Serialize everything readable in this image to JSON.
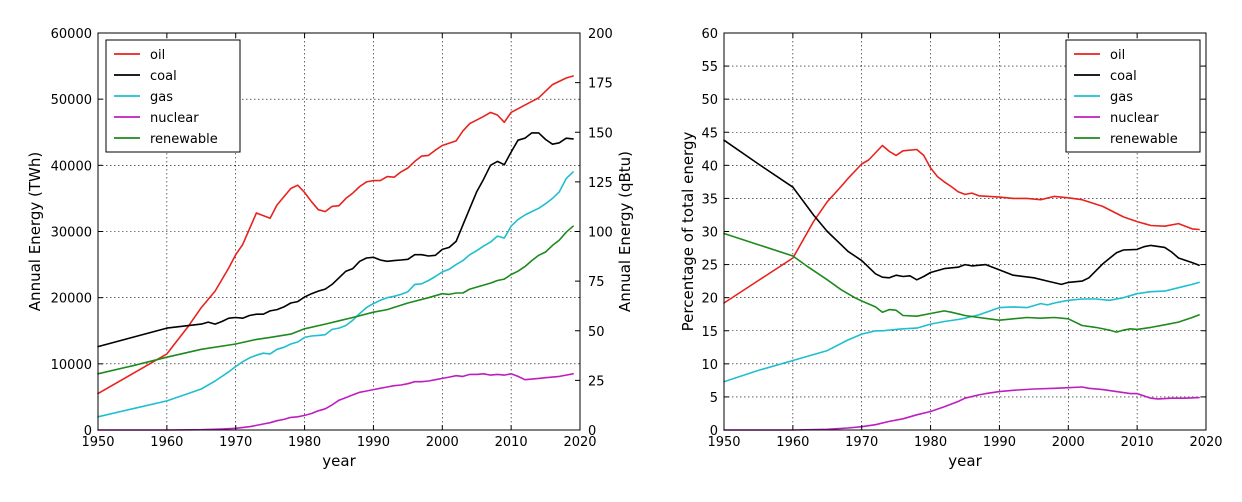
{
  "chart_data": [
    {
      "type": "line",
      "xlabel": "year",
      "ylabel": "Annual Energy (TWh)",
      "y2label": "Annual Energy (qBtu)",
      "xlim": [
        1950,
        2020
      ],
      "ylim": [
        0,
        60000
      ],
      "y2lim": [
        0,
        200
      ],
      "xticks": [
        1950,
        1960,
        1970,
        1980,
        1990,
        2000,
        2010,
        2020
      ],
      "yticks": [
        0,
        10000,
        20000,
        30000,
        40000,
        50000,
        60000
      ],
      "y2ticks": [
        0,
        25,
        50,
        75,
        100,
        125,
        150,
        175,
        200
      ],
      "grid": true,
      "legend_position": "top-left",
      "series": [
        {
          "name": "oil",
          "color": "#e8231e",
          "x": [
            1950,
            1955,
            1960,
            1963,
            1965,
            1967,
            1969,
            1970,
            1971,
            1973,
            1975,
            1976,
            1978,
            1979,
            1980,
            1981,
            1982,
            1983,
            1984,
            1985,
            1986,
            1987,
            1988,
            1989,
            1990,
            1991,
            1992,
            1993,
            1994,
            1995,
            1996,
            1997,
            1998,
            1999,
            2000,
            2002,
            2003,
            2004,
            2006,
            2007,
            2008,
            2009,
            2010,
            2012,
            2014,
            2016,
            2018,
            2019
          ],
          "y": [
            5500,
            8500,
            11500,
            15500,
            18500,
            21000,
            24500,
            26500,
            28000,
            32800,
            32000,
            34000,
            36500,
            37000,
            35900,
            34500,
            33300,
            33000,
            33800,
            33900,
            35000,
            35800,
            36800,
            37500,
            37700,
            37700,
            38300,
            38200,
            39000,
            39600,
            40600,
            41400,
            41500,
            42300,
            43000,
            43700,
            45200,
            46300,
            47400,
            48000,
            47600,
            46500,
            48000,
            49100,
            50200,
            52200,
            53200,
            53500
          ]
        },
        {
          "name": "coal",
          "color": "#000000",
          "x": [
            1950,
            1955,
            1960,
            1965,
            1966,
            1967,
            1968,
            1969,
            1970,
            1971,
            1972,
            1973,
            1974,
            1975,
            1976,
            1977,
            1978,
            1979,
            1980,
            1981,
            1982,
            1983,
            1984,
            1985,
            1986,
            1987,
            1988,
            1989,
            1990,
            1991,
            1992,
            1993,
            1994,
            1995,
            1996,
            1997,
            1998,
            1999,
            2000,
            2001,
            2002,
            2003,
            2004,
            2005,
            2006,
            2007,
            2008,
            2009,
            2010,
            2011,
            2012,
            2013,
            2014,
            2015,
            2016,
            2017,
            2018,
            2019
          ],
          "y": [
            12600,
            14000,
            15400,
            16000,
            16300,
            16000,
            16400,
            16900,
            17000,
            16900,
            17300,
            17500,
            17500,
            18000,
            18200,
            18600,
            19200,
            19400,
            20100,
            20600,
            21000,
            21300,
            22000,
            23000,
            24000,
            24400,
            25500,
            26000,
            26100,
            25700,
            25500,
            25600,
            25700,
            25800,
            26500,
            26500,
            26300,
            26400,
            27300,
            27600,
            28500,
            31000,
            33500,
            36000,
            37900,
            40000,
            40600,
            40100,
            42000,
            43800,
            44100,
            44900,
            44900,
            43900,
            43200,
            43400,
            44100,
            44000
          ]
        },
        {
          "name": "gas",
          "color": "#1ebfcf",
          "x": [
            1950,
            1955,
            1960,
            1965,
            1967,
            1969,
            1970,
            1971,
            1972,
            1973,
            1974,
            1975,
            1976,
            1977,
            1978,
            1979,
            1980,
            1981,
            1982,
            1983,
            1984,
            1985,
            1986,
            1987,
            1988,
            1989,
            1990,
            1991,
            1992,
            1993,
            1994,
            1995,
            1996,
            1997,
            1998,
            1999,
            2000,
            2001,
            2002,
            2003,
            2004,
            2005,
            2006,
            2007,
            2008,
            2009,
            2010,
            2011,
            2012,
            2013,
            2014,
            2015,
            2016,
            2017,
            2018,
            2019
          ],
          "y": [
            2000,
            3200,
            4400,
            6200,
            7400,
            8800,
            9600,
            10300,
            10900,
            11300,
            11600,
            11500,
            12200,
            12500,
            13000,
            13300,
            14000,
            14200,
            14300,
            14400,
            15200,
            15400,
            15800,
            16600,
            17600,
            18500,
            19100,
            19600,
            20000,
            20200,
            20500,
            20900,
            22000,
            22100,
            22600,
            23200,
            23900,
            24300,
            25000,
            25600,
            26500,
            27100,
            27800,
            28400,
            29300,
            29000,
            30800,
            31800,
            32500,
            33000,
            33500,
            34200,
            35000,
            36000,
            38000,
            39000
          ]
        },
        {
          "name": "nuclear",
          "color": "#bf1ebf",
          "x": [
            1950,
            1955,
            1960,
            1965,
            1968,
            1970,
            1972,
            1973,
            1974,
            1975,
            1976,
            1977,
            1978,
            1979,
            1980,
            1981,
            1982,
            1983,
            1984,
            1985,
            1986,
            1987,
            1988,
            1989,
            1990,
            1991,
            1992,
            1993,
            1994,
            1995,
            1996,
            1997,
            1998,
            1999,
            2000,
            2001,
            2002,
            2003,
            2004,
            2005,
            2006,
            2007,
            2008,
            2009,
            2010,
            2011,
            2012,
            2013,
            2014,
            2015,
            2016,
            2017,
            2018,
            2019
          ],
          "y": [
            0,
            0,
            0,
            50,
            150,
            250,
            500,
            700,
            900,
            1100,
            1400,
            1600,
            1900,
            2000,
            2200,
            2500,
            2900,
            3200,
            3800,
            4500,
            4900,
            5300,
            5700,
            5900,
            6100,
            6300,
            6500,
            6700,
            6800,
            7000,
            7300,
            7300,
            7400,
            7600,
            7800,
            8000,
            8200,
            8100,
            8400,
            8400,
            8500,
            8300,
            8400,
            8300,
            8500,
            8100,
            7600,
            7700,
            7800,
            7900,
            8000,
            8100,
            8300,
            8500
          ]
        },
        {
          "name": "renewable",
          "color": "#1e8a1e",
          "x": [
            1950,
            1955,
            1960,
            1965,
            1970,
            1973,
            1975,
            1978,
            1980,
            1983,
            1985,
            1987,
            1990,
            1992,
            1995,
            1998,
            2000,
            2001,
            2002,
            2003,
            2004,
            2005,
            2006,
            2007,
            2008,
            2009,
            2010,
            2011,
            2012,
            2013,
            2014,
            2015,
            2016,
            2017,
            2018,
            2019
          ],
          "y": [
            8500,
            9700,
            11000,
            12200,
            13000,
            13700,
            14000,
            14500,
            15300,
            16000,
            16500,
            17000,
            17800,
            18200,
            19200,
            20000,
            20600,
            20500,
            20700,
            20700,
            21300,
            21600,
            21900,
            22200,
            22600,
            22800,
            23500,
            24000,
            24700,
            25600,
            26400,
            26900,
            27900,
            28700,
            29900,
            30800
          ]
        }
      ]
    },
    {
      "type": "line",
      "xlabel": "year",
      "ylabel": "Percentage of total energy",
      "xlim": [
        1950,
        2020
      ],
      "ylim": [
        0,
        60
      ],
      "xticks": [
        1950,
        1960,
        1970,
        1980,
        1990,
        2000,
        2010,
        2020
      ],
      "yticks": [
        0,
        5,
        10,
        15,
        20,
        25,
        30,
        35,
        40,
        45,
        50,
        55,
        60
      ],
      "grid": true,
      "legend_position": "top-right",
      "series": [
        {
          "name": "oil",
          "color": "#e8231e",
          "x": [
            1950,
            1955,
            1960,
            1963,
            1965,
            1967,
            1968,
            1970,
            1971,
            1973,
            1974,
            1975,
            1976,
            1978,
            1979,
            1980,
            1981,
            1982,
            1983,
            1984,
            1985,
            1986,
            1987,
            1990,
            1992,
            1994,
            1996,
            1998,
            2000,
            2002,
            2005,
            2008,
            2010,
            2012,
            2014,
            2016,
            2018,
            2019
          ],
          "y": [
            19.2,
            22.6,
            26.0,
            31.5,
            34.5,
            36.8,
            38.0,
            40.2,
            40.8,
            43.0,
            42.1,
            41.5,
            42.2,
            42.4,
            41.5,
            39.6,
            38.3,
            37.5,
            36.8,
            36.0,
            35.6,
            35.8,
            35.4,
            35.2,
            35.0,
            35.0,
            34.8,
            35.3,
            35.1,
            34.8,
            33.8,
            32.2,
            31.5,
            30.9,
            30.8,
            31.2,
            30.4,
            30.3
          ]
        },
        {
          "name": "coal",
          "color": "#000000",
          "x": [
            1950,
            1955,
            1960,
            1963,
            1965,
            1967,
            1968,
            1970,
            1972,
            1973,
            1974,
            1975,
            1976,
            1977,
            1978,
            1979,
            1980,
            1982,
            1984,
            1985,
            1986,
            1988,
            1990,
            1992,
            1995,
            1997,
            1999,
            2000,
            2002,
            2003,
            2005,
            2007,
            2008,
            2010,
            2011,
            2012,
            2014,
            2015,
            2016,
            2018,
            2019
          ],
          "y": [
            43.8,
            40.2,
            36.7,
            32.5,
            30.0,
            28.0,
            27.0,
            25.6,
            23.6,
            23.1,
            23.0,
            23.4,
            23.2,
            23.3,
            22.7,
            23.2,
            23.8,
            24.4,
            24.6,
            25.0,
            24.8,
            25.0,
            24.2,
            23.4,
            23.0,
            22.5,
            22.0,
            22.3,
            22.5,
            23.0,
            25.1,
            26.8,
            27.2,
            27.3,
            27.7,
            27.9,
            27.6,
            26.9,
            26.0,
            25.3,
            24.9
          ]
        },
        {
          "name": "gas",
          "color": "#1ebfcf",
          "x": [
            1950,
            1955,
            1960,
            1965,
            1968,
            1970,
            1972,
            1973,
            1975,
            1976,
            1978,
            1980,
            1982,
            1984,
            1985,
            1987,
            1990,
            1992,
            1994,
            1995,
            1996,
            1997,
            1998,
            2000,
            2002,
            2004,
            2006,
            2008,
            2010,
            2012,
            2014,
            2016,
            2018,
            2019
          ],
          "y": [
            7.3,
            9.0,
            10.5,
            12.0,
            13.6,
            14.5,
            15.0,
            15.0,
            15.2,
            15.3,
            15.4,
            16.0,
            16.4,
            16.7,
            16.9,
            17.4,
            18.5,
            18.6,
            18.5,
            18.8,
            19.1,
            18.9,
            19.2,
            19.6,
            19.8,
            19.8,
            19.6,
            20.0,
            20.6,
            20.9,
            21.0,
            21.5,
            22.0,
            22.3
          ]
        },
        {
          "name": "nuclear",
          "color": "#bf1ebf",
          "x": [
            1950,
            1955,
            1960,
            1965,
            1968,
            1970,
            1972,
            1974,
            1976,
            1978,
            1980,
            1982,
            1984,
            1985,
            1987,
            1988,
            1990,
            1992,
            1995,
            1998,
            2000,
            2002,
            2003,
            2005,
            2007,
            2009,
            2010,
            2012,
            2013,
            2015,
            2017,
            2019
          ],
          "y": [
            0,
            0,
            0,
            0.1,
            0.3,
            0.5,
            0.8,
            1.3,
            1.7,
            2.3,
            2.8,
            3.5,
            4.3,
            4.8,
            5.3,
            5.5,
            5.8,
            6.0,
            6.2,
            6.3,
            6.4,
            6.5,
            6.3,
            6.1,
            5.8,
            5.5,
            5.5,
            4.8,
            4.7,
            4.8,
            4.8,
            4.9
          ]
        },
        {
          "name": "renewable",
          "color": "#1e8a1e",
          "x": [
            1950,
            1955,
            1960,
            1962,
            1965,
            1967,
            1969,
            1970,
            1972,
            1973,
            1974,
            1975,
            1976,
            1978,
            1980,
            1982,
            1983,
            1985,
            1987,
            1990,
            1992,
            1994,
            1996,
            1998,
            2000,
            2002,
            2004,
            2006,
            2007,
            2008,
            2009,
            2010,
            2012,
            2014,
            2016,
            2018,
            2019
          ],
          "y": [
            29.7,
            28.0,
            26.3,
            24.8,
            22.7,
            21.2,
            20.0,
            19.5,
            18.6,
            17.8,
            18.2,
            18.1,
            17.3,
            17.2,
            17.6,
            18.0,
            17.8,
            17.3,
            17.0,
            16.6,
            16.8,
            17.0,
            16.9,
            17.0,
            16.8,
            15.8,
            15.5,
            15.1,
            14.8,
            15.1,
            15.3,
            15.2,
            15.5,
            15.9,
            16.3,
            17.0,
            17.4
          ]
        }
      ]
    }
  ]
}
